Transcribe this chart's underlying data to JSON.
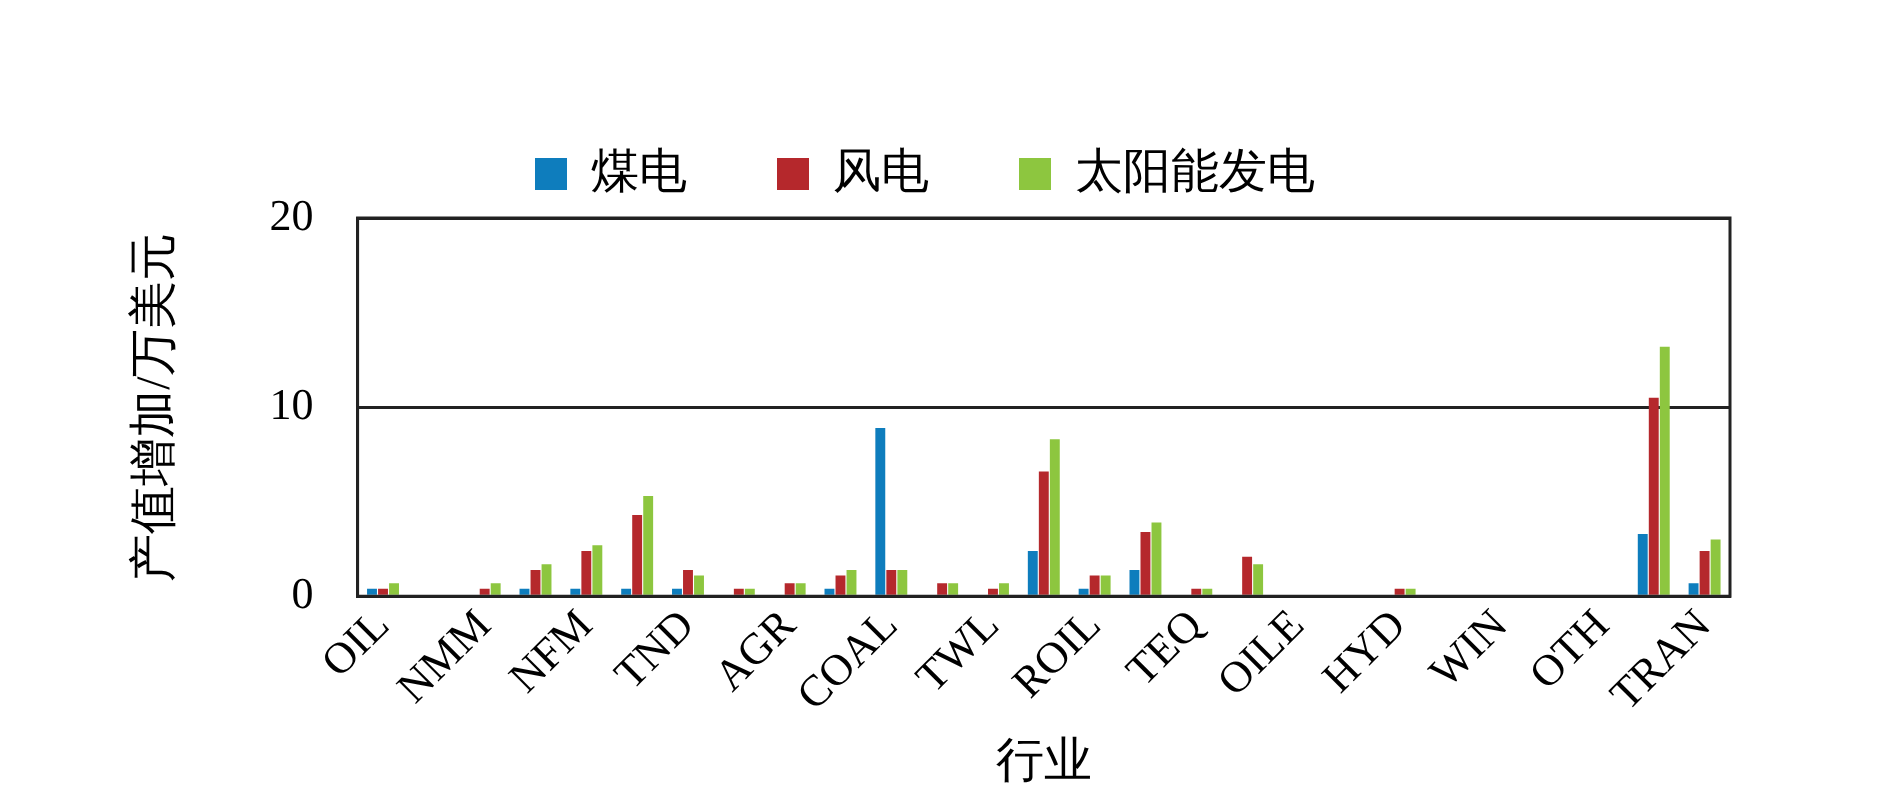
{
  "chart_data": {
    "type": "bar",
    "xlabel": "行业",
    "ylabel": "产值增加/万美元",
    "categories": [
      "OIL",
      null,
      "NMM",
      null,
      "NFM",
      null,
      "TND",
      null,
      "AGR",
      null,
      "COAL",
      null,
      "TWL",
      null,
      "ROIL",
      null,
      "TEQ",
      null,
      "OILE",
      null,
      "HYD",
      null,
      "WIN",
      null,
      "OTH",
      null,
      "TRAN"
    ],
    "series": [
      {
        "name": "煤电",
        "color": "#0e7dbd",
        "values": [
          0.4,
          0,
          0,
          0.4,
          0.4,
          0.4,
          0.4,
          0,
          0,
          0.4,
          8.9,
          0,
          0,
          2.4,
          0.4,
          1.4,
          0,
          0,
          0,
          0,
          0,
          0,
          0,
          0,
          0,
          3.3,
          0.7
        ]
      },
      {
        "name": "风电",
        "color": "#b5282c",
        "values": [
          0.4,
          0,
          0.4,
          1.4,
          2.4,
          4.3,
          1.4,
          0.4,
          0.7,
          1.1,
          1.4,
          0.7,
          0.4,
          6.6,
          1.1,
          3.4,
          0.4,
          2.1,
          0,
          0,
          0.4,
          0,
          0,
          0,
          0,
          10.5,
          2.4
        ]
      },
      {
        "name": "太阳能发电",
        "color": "#8dc63f",
        "values": [
          0.7,
          0,
          0.7,
          1.7,
          2.7,
          5.3,
          1.1,
          0.4,
          0.7,
          1.4,
          1.4,
          0.7,
          0.7,
          8.3,
          1.1,
          3.9,
          0.4,
          1.7,
          0,
          0,
          0.4,
          0,
          0,
          0,
          0,
          13.2,
          3.0
        ]
      }
    ],
    "ylim": [
      0,
      20
    ],
    "yticks": [
      0,
      10,
      20
    ],
    "grid": "y",
    "legend": "top"
  }
}
